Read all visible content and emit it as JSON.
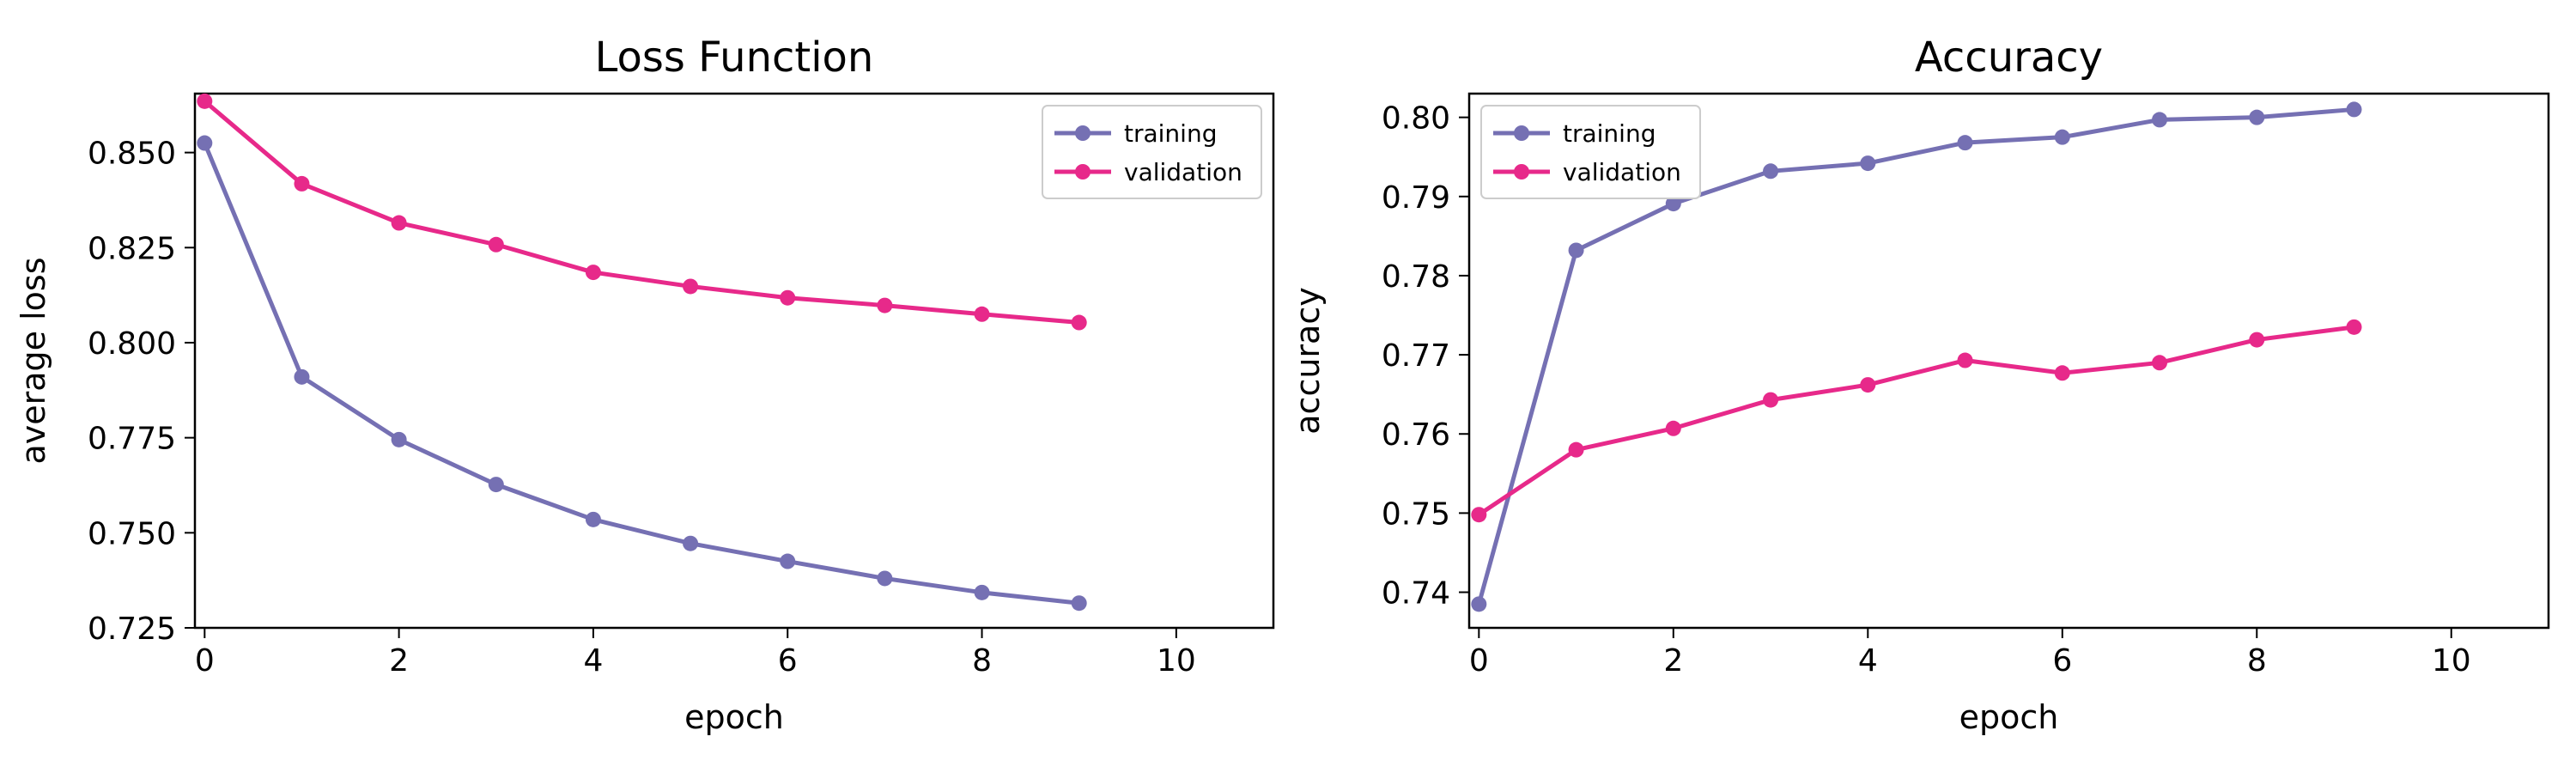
{
  "chart_data": [
    {
      "type": "line",
      "title": "Loss Function",
      "xlabel": "epoch",
      "ylabel": "average loss",
      "xlim": [
        -0.1,
        11
      ],
      "ylim": [
        0.725,
        0.8655
      ],
      "x_ticks": [
        0,
        2,
        4,
        6,
        8,
        10
      ],
      "x_tick_labels": [
        "0",
        "2",
        "4",
        "6",
        "8",
        "10"
      ],
      "y_ticks": [
        0.725,
        0.75,
        0.775,
        0.8,
        0.825,
        0.85
      ],
      "y_tick_labels": [
        "0.725",
        "0.750",
        "0.775",
        "0.800",
        "0.825",
        "0.850"
      ],
      "legend_position": "top-right",
      "grid": false,
      "x": [
        0,
        1,
        2,
        3,
        4,
        5,
        6,
        7,
        8,
        9
      ],
      "series": [
        {
          "name": "training",
          "color": "#7570b3",
          "marker": "circle",
          "values": [
            0.8525,
            0.791,
            0.7745,
            0.7627,
            0.7535,
            0.7472,
            0.7425,
            0.738,
            0.7343,
            0.7315
          ]
        },
        {
          "name": "validation",
          "color": "#e7298a",
          "marker": "circle",
          "values": [
            0.8635,
            0.8418,
            0.8315,
            0.8258,
            0.8185,
            0.8148,
            0.8118,
            0.8098,
            0.8075,
            0.8053
          ]
        }
      ]
    },
    {
      "type": "line",
      "title": "Accuracy",
      "xlabel": "epoch",
      "ylabel": "accuracy",
      "xlim": [
        -0.1,
        11
      ],
      "ylim": [
        0.7355,
        0.803
      ],
      "x_ticks": [
        0,
        2,
        4,
        6,
        8,
        10
      ],
      "x_tick_labels": [
        "0",
        "2",
        "4",
        "6",
        "8",
        "10"
      ],
      "y_ticks": [
        0.74,
        0.75,
        0.76,
        0.77,
        0.78,
        0.79,
        0.8
      ],
      "y_tick_labels": [
        "0.74",
        "0.75",
        "0.76",
        "0.77",
        "0.78",
        "0.79",
        "0.80"
      ],
      "legend_position": "top-left",
      "grid": false,
      "x": [
        0,
        1,
        2,
        3,
        4,
        5,
        6,
        7,
        8,
        9
      ],
      "series": [
        {
          "name": "training",
          "color": "#7570b3",
          "marker": "circle",
          "values": [
            0.7385,
            0.7832,
            0.7891,
            0.7932,
            0.7942,
            0.7968,
            0.7975,
            0.7997,
            0.8,
            0.801
          ]
        },
        {
          "name": "validation",
          "color": "#e7298a",
          "marker": "circle",
          "values": [
            0.7498,
            0.758,
            0.7607,
            0.7643,
            0.7662,
            0.7693,
            0.7677,
            0.769,
            0.7719,
            0.7735
          ]
        }
      ]
    }
  ]
}
